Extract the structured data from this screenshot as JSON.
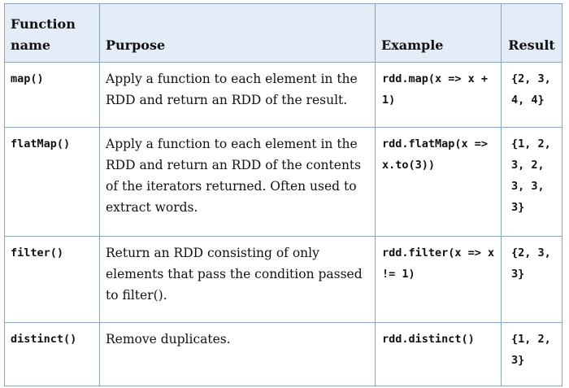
{
  "headers": {
    "function_name": "Function name",
    "purpose": "Purpose",
    "example": "Example",
    "result": "Result"
  },
  "rows": [
    {
      "function": "map()",
      "purpose": "Apply a function to each element in the RDD and return an RDD of the result.",
      "example": "rdd.map(x => x + 1)",
      "result": "{2, 3, 4, 4}"
    },
    {
      "function": "flatMap()",
      "purpose": "Apply a function to each element in the RDD and return an RDD of the contents of the iterators returned. Often used to extract words.",
      "example": "rdd.flatMap(x => x.to(3))",
      "result": "{1, 2, 3, 2, 3, 3, 3}"
    },
    {
      "function": "filter()",
      "purpose": "Return an RDD consisting of only elements that pass the condition passed to filter().",
      "example": "rdd.filter(x => x != 1)",
      "result": "{2, 3, 3}"
    },
    {
      "function": "distinct()",
      "purpose": "Remove duplicates.",
      "example": "rdd.distinct()",
      "result": "{1, 2, 3}"
    }
  ]
}
